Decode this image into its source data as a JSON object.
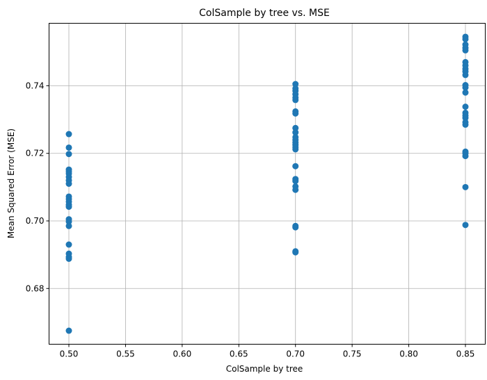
{
  "chart_data": {
    "type": "scatter",
    "title": "ColSample by tree vs. MSE",
    "xlabel": "ColSample by tree",
    "ylabel": "Mean Squared Error (MSE)",
    "xlim": [
      0.4825,
      0.8675
    ],
    "ylim": [
      0.6635,
      0.7585
    ],
    "xticks": [
      0.5,
      0.55,
      0.6,
      0.65,
      0.7,
      0.75,
      0.8,
      0.85
    ],
    "xtick_labels": [
      "0.50",
      "0.55",
      "0.60",
      "0.65",
      "0.70",
      "0.75",
      "0.80",
      "0.85"
    ],
    "yticks": [
      0.68,
      0.7,
      0.72,
      0.74
    ],
    "ytick_labels": [
      "0.68",
      "0.70",
      "0.72",
      "0.74"
    ],
    "grid": true,
    "marker_color": "#1f77b4",
    "points": [
      {
        "x": 0.5,
        "y": 0.7257
      },
      {
        "x": 0.5,
        "y": 0.7217
      },
      {
        "x": 0.5,
        "y": 0.7198
      },
      {
        "x": 0.5,
        "y": 0.7152
      },
      {
        "x": 0.5,
        "y": 0.7146
      },
      {
        "x": 0.5,
        "y": 0.714
      },
      {
        "x": 0.5,
        "y": 0.713
      },
      {
        "x": 0.5,
        "y": 0.712
      },
      {
        "x": 0.5,
        "y": 0.711
      },
      {
        "x": 0.5,
        "y": 0.7072
      },
      {
        "x": 0.5,
        "y": 0.7065
      },
      {
        "x": 0.5,
        "y": 0.7057
      },
      {
        "x": 0.5,
        "y": 0.7048
      },
      {
        "x": 0.5,
        "y": 0.7042
      },
      {
        "x": 0.5,
        "y": 0.7005
      },
      {
        "x": 0.5,
        "y": 0.6998
      },
      {
        "x": 0.5,
        "y": 0.6985
      },
      {
        "x": 0.5,
        "y": 0.693
      },
      {
        "x": 0.5,
        "y": 0.6903
      },
      {
        "x": 0.5,
        "y": 0.6893
      },
      {
        "x": 0.5,
        "y": 0.6888
      },
      {
        "x": 0.5,
        "y": 0.6675
      },
      {
        "x": 0.7,
        "y": 0.7405
      },
      {
        "x": 0.7,
        "y": 0.7392
      },
      {
        "x": 0.7,
        "y": 0.7385
      },
      {
        "x": 0.7,
        "y": 0.7375
      },
      {
        "x": 0.7,
        "y": 0.7365
      },
      {
        "x": 0.7,
        "y": 0.7358
      },
      {
        "x": 0.7,
        "y": 0.7324
      },
      {
        "x": 0.7,
        "y": 0.7318
      },
      {
        "x": 0.7,
        "y": 0.7275
      },
      {
        "x": 0.7,
        "y": 0.7262
      },
      {
        "x": 0.7,
        "y": 0.7248
      },
      {
        "x": 0.7,
        "y": 0.724
      },
      {
        "x": 0.7,
        "y": 0.7232
      },
      {
        "x": 0.7,
        "y": 0.7225
      },
      {
        "x": 0.7,
        "y": 0.7218
      },
      {
        "x": 0.7,
        "y": 0.7212
      },
      {
        "x": 0.7,
        "y": 0.7162
      },
      {
        "x": 0.7,
        "y": 0.7124
      },
      {
        "x": 0.7,
        "y": 0.7118
      },
      {
        "x": 0.7,
        "y": 0.7102
      },
      {
        "x": 0.7,
        "y": 0.7092
      },
      {
        "x": 0.7,
        "y": 0.6985
      },
      {
        "x": 0.7,
        "y": 0.6981
      },
      {
        "x": 0.7,
        "y": 0.691
      },
      {
        "x": 0.7,
        "y": 0.6907
      },
      {
        "x": 0.85,
        "y": 0.7545
      },
      {
        "x": 0.85,
        "y": 0.7538
      },
      {
        "x": 0.85,
        "y": 0.7522
      },
      {
        "x": 0.85,
        "y": 0.7512
      },
      {
        "x": 0.85,
        "y": 0.7505
      },
      {
        "x": 0.85,
        "y": 0.747
      },
      {
        "x": 0.85,
        "y": 0.746
      },
      {
        "x": 0.85,
        "y": 0.745
      },
      {
        "x": 0.85,
        "y": 0.7442
      },
      {
        "x": 0.85,
        "y": 0.7432
      },
      {
        "x": 0.85,
        "y": 0.7402
      },
      {
        "x": 0.85,
        "y": 0.7395
      },
      {
        "x": 0.85,
        "y": 0.738
      },
      {
        "x": 0.85,
        "y": 0.7338
      },
      {
        "x": 0.85,
        "y": 0.732
      },
      {
        "x": 0.85,
        "y": 0.7312
      },
      {
        "x": 0.85,
        "y": 0.7305
      },
      {
        "x": 0.85,
        "y": 0.7292
      },
      {
        "x": 0.85,
        "y": 0.7285
      },
      {
        "x": 0.85,
        "y": 0.7205
      },
      {
        "x": 0.85,
        "y": 0.72
      },
      {
        "x": 0.85,
        "y": 0.7192
      },
      {
        "x": 0.85,
        "y": 0.71
      },
      {
        "x": 0.85,
        "y": 0.6988
      }
    ]
  }
}
